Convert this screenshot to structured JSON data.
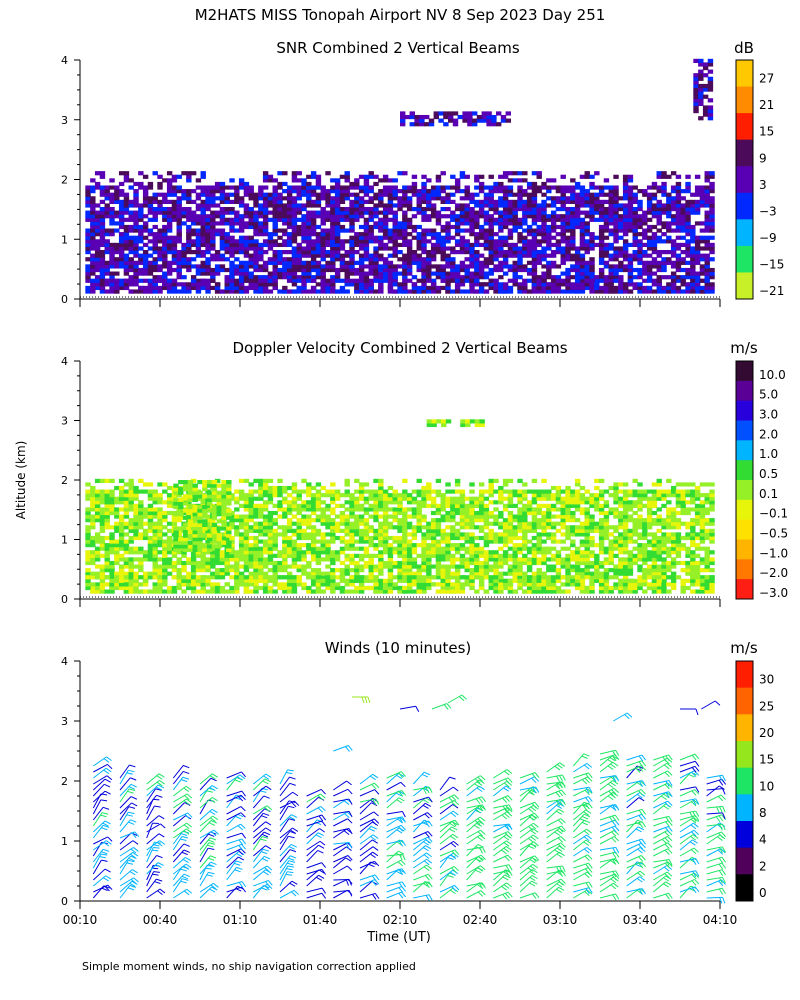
{
  "main_title": "M2HATS MISS Tonopah Airport NV   8 Sep 2023 Day 251",
  "shared_ylabel": "Altitude (km)",
  "shared_xlabel": "Time (UT)",
  "footnote": "Simple moment winds, no ship navigation correction applied",
  "chart_data": [
    {
      "type": "heatmap",
      "title": "SNR Combined 2 Vertical Beams",
      "ylabel": "Altitude (km)",
      "ylim": [
        0,
        4
      ],
      "yticks": [
        "0",
        "1",
        "2",
        "3",
        "4"
      ],
      "xlim_hours": [
        0.1667,
        4.1667
      ],
      "colorbar": {
        "unit": "dB",
        "labels": [
          "27",
          "21",
          "15",
          "9",
          "3",
          "−3",
          "−9",
          "−15",
          "−21"
        ],
        "colors": [
          "#ffc800",
          "#ff8c00",
          "#ff1e00",
          "#4b0a5a",
          "#5a00b4",
          "#0028ff",
          "#00b4ff",
          "#1ee664",
          "#c8f028"
        ]
      },
      "regions": [
        {
          "start": "00:12",
          "end": "04:07",
          "alt_low": 0.1,
          "alt_high": 2.1,
          "value": "-15",
          "label": "main boundary layer echo"
        },
        {
          "start": "00:12",
          "end": "04:07",
          "alt_low": 0.1,
          "alt_high": 0.3,
          "value": "3",
          "label": "strong near-surface return"
        },
        {
          "start": "02:10",
          "end": "02:50",
          "alt_low": 2.9,
          "alt_high": 3.1,
          "value": "-21",
          "label": "weak elevated layer"
        },
        {
          "start": "04:00",
          "end": "04:07",
          "alt_low": 3.0,
          "alt_high": 4.0,
          "value": "-21",
          "label": "late upper echo"
        }
      ]
    },
    {
      "type": "heatmap",
      "title": "Doppler Velocity Combined 2 Vertical Beams",
      "ylabel": "Altitude (km)",
      "ylim": [
        0,
        4
      ],
      "yticks": [
        "0",
        "1",
        "2",
        "3",
        "4"
      ],
      "xlim_hours": [
        0.1667,
        4.1667
      ],
      "colorbar": {
        "unit": "m/s",
        "labels": [
          "10.0",
          "5.0",
          "3.0",
          "2.0",
          "1.0",
          "0.5",
          "0.1",
          "−0.1",
          "−0.5",
          "−1.0",
          "−2.0",
          "−3.0"
        ],
        "colors": [
          "#320a32",
          "#5a0096",
          "#2800dc",
          "#0050ff",
          "#00b4ff",
          "#32dc32",
          "#96f028",
          "#e6f50a",
          "#ffe100",
          "#ffb400",
          "#ff7800",
          "#ff1e14"
        ]
      },
      "regions": [
        {
          "start": "00:12",
          "end": "04:07",
          "alt_low": 0.1,
          "alt_high": 2.0,
          "value": "0.1",
          "label": "main velocity field"
        },
        {
          "start": "00:12",
          "end": "04:07",
          "alt_low": 0.1,
          "alt_high": 0.4,
          "value": "-0.1",
          "label": "near-surface downward motion"
        },
        {
          "start": "00:45",
          "end": "01:05",
          "alt_low": 0.8,
          "alt_high": 2.0,
          "value": "-1.0",
          "label": "subsidence patch"
        },
        {
          "start": "02:20",
          "end": "02:40",
          "alt_low": 2.9,
          "alt_high": 3.0,
          "value": "-1.0",
          "label": "elevated layer"
        }
      ]
    },
    {
      "type": "scatter",
      "subtype": "wind_barbs",
      "title": "Winds (10 minutes)",
      "ylabel": "Altitude (km)",
      "xlabel": "Time (UT)",
      "ylim": [
        0,
        4
      ],
      "yticks": [
        "0",
        "1",
        "2",
        "3",
        "4"
      ],
      "xticks": [
        "00:10",
        "00:40",
        "01:10",
        "01:40",
        "02:10",
        "02:40",
        "03:10",
        "03:40",
        "04:10"
      ],
      "colorbar": {
        "unit": "m/s",
        "labels": [
          "30",
          "25",
          "20",
          "15",
          "10",
          "8",
          "4",
          "2",
          "0"
        ],
        "colors": [
          "#ff1e00",
          "#ff6400",
          "#ffb400",
          "#96e61e",
          "#1ee664",
          "#00b4ff",
          "#0000dc",
          "#50005a",
          "#000000"
        ]
      },
      "profiles": [
        {
          "time": "00:15",
          "top_km": 2.3,
          "speed_ms": 8,
          "direction_deg": 225
        },
        {
          "time": "00:25",
          "top_km": 2.1,
          "speed_ms": 9,
          "direction_deg": 230
        },
        {
          "time": "00:35",
          "top_km": 2.0,
          "speed_ms": 8,
          "direction_deg": 220
        },
        {
          "time": "00:45",
          "top_km": 2.1,
          "speed_ms": 9,
          "direction_deg": 230
        },
        {
          "time": "00:55",
          "top_km": 2.0,
          "speed_ms": 9,
          "direction_deg": 225
        },
        {
          "time": "01:05",
          "top_km": 2.1,
          "speed_ms": 8,
          "direction_deg": 235
        },
        {
          "time": "01:15",
          "top_km": 2.0,
          "speed_ms": 9,
          "direction_deg": 230
        },
        {
          "time": "01:25",
          "top_km": 2.0,
          "speed_ms": 8,
          "direction_deg": 225
        },
        {
          "time": "01:35",
          "top_km": 1.8,
          "speed_ms": 7,
          "direction_deg": 240
        },
        {
          "time": "01:45",
          "top_km": 1.9,
          "speed_ms": 7,
          "direction_deg": 250
        },
        {
          "time": "01:55",
          "top_km": 2.0,
          "speed_ms": 8,
          "direction_deg": 240
        },
        {
          "time": "02:05",
          "top_km": 2.1,
          "speed_ms": 9,
          "direction_deg": 245
        },
        {
          "time": "02:15",
          "top_km": 2.0,
          "speed_ms": 10,
          "direction_deg": 240
        },
        {
          "time": "02:25",
          "top_km": 1.9,
          "speed_ms": 10,
          "direction_deg": 235
        },
        {
          "time": "02:35",
          "top_km": 2.0,
          "speed_ms": 11,
          "direction_deg": 240
        },
        {
          "time": "02:45",
          "top_km": 2.1,
          "speed_ms": 12,
          "direction_deg": 245
        },
        {
          "time": "02:55",
          "top_km": 2.1,
          "speed_ms": 12,
          "direction_deg": 240
        },
        {
          "time": "03:05",
          "top_km": 2.2,
          "speed_ms": 12,
          "direction_deg": 245
        },
        {
          "time": "03:15",
          "top_km": 2.3,
          "speed_ms": 11,
          "direction_deg": 240
        },
        {
          "time": "03:25",
          "top_km": 2.5,
          "speed_ms": 11,
          "direction_deg": 245
        },
        {
          "time": "03:35",
          "top_km": 2.4,
          "speed_ms": 10,
          "direction_deg": 240
        },
        {
          "time": "03:45",
          "top_km": 2.4,
          "speed_ms": 11,
          "direction_deg": 245
        },
        {
          "time": "03:55",
          "top_km": 2.4,
          "speed_ms": 10,
          "direction_deg": 240
        },
        {
          "time": "04:05",
          "top_km": 2.1,
          "speed_ms": 10,
          "direction_deg": 250
        }
      ],
      "isolated_barbs": [
        {
          "time": "01:45",
          "alt_km": 2.5,
          "speed_ms": 8,
          "direction_deg": 250
        },
        {
          "time": "01:52",
          "alt_km": 3.4,
          "speed_ms": 15,
          "direction_deg": 270
        },
        {
          "time": "02:10",
          "alt_km": 3.2,
          "speed_ms": 6,
          "direction_deg": 260
        },
        {
          "time": "02:22",
          "alt_km": 3.2,
          "speed_ms": 12,
          "direction_deg": 250
        },
        {
          "time": "02:28",
          "alt_km": 3.3,
          "speed_ms": 10,
          "direction_deg": 240
        },
        {
          "time": "03:30",
          "alt_km": 3.0,
          "speed_ms": 8,
          "direction_deg": 240
        },
        {
          "time": "03:55",
          "alt_km": 3.2,
          "speed_ms": 6,
          "direction_deg": 270
        },
        {
          "time": "04:03",
          "alt_km": 3.2,
          "speed_ms": 5,
          "direction_deg": 240
        }
      ]
    }
  ]
}
